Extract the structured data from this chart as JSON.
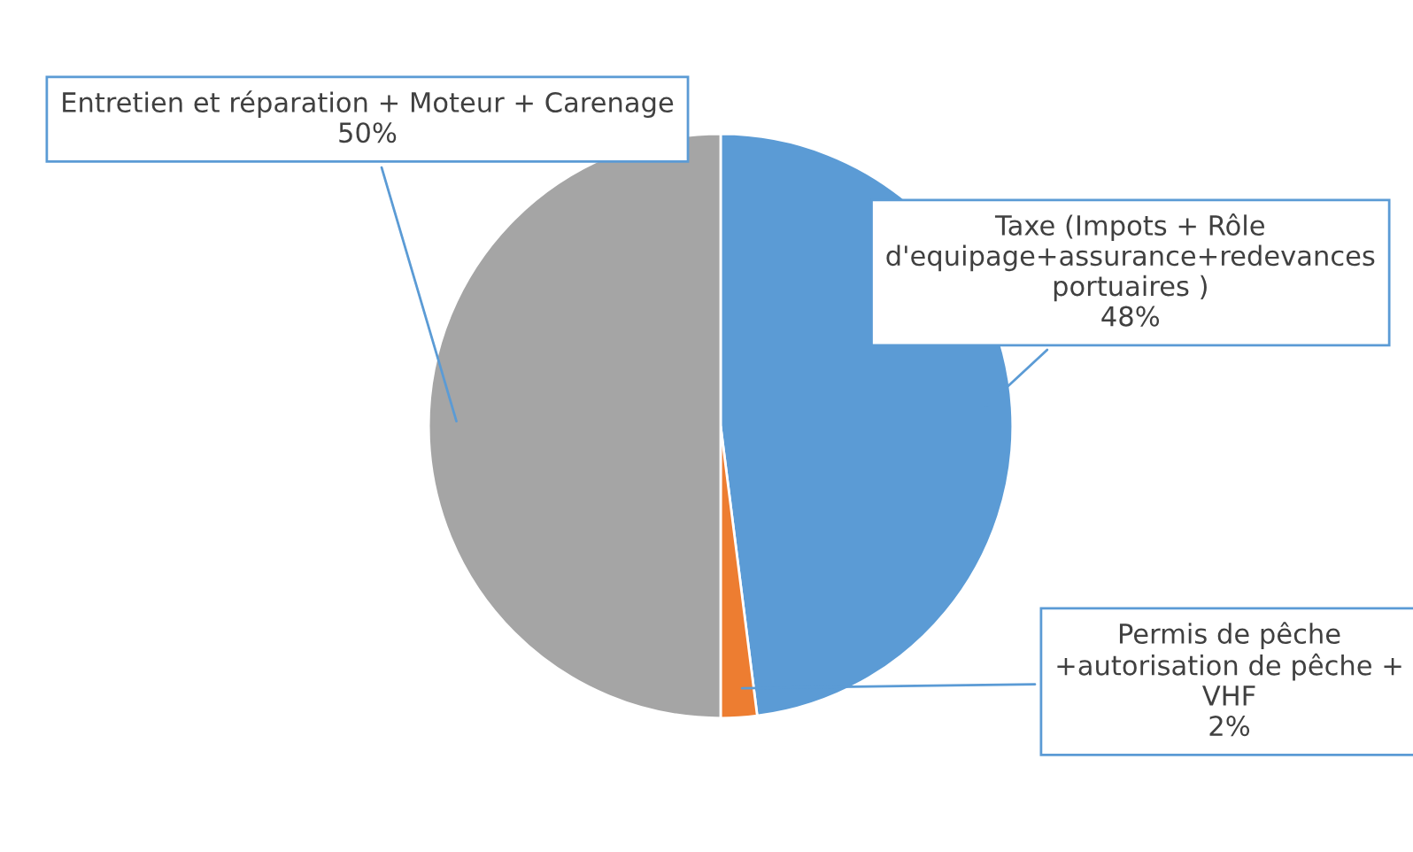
{
  "chart_data": {
    "type": "pie",
    "categories": [
      "Taxe (Impots + Rôle d'equipage+assurance+redevances portuaires )",
      "Permis de pêche +autorisation de pêche + VHF",
      "Entretien et réparation + Moteur + Carenage"
    ],
    "values": [
      48,
      2,
      50
    ],
    "colors": [
      "#5b9bd5",
      "#ed7d31",
      "#a5a5a5"
    ],
    "value_labels": [
      "48%",
      "2%",
      "50%"
    ],
    "legend": false
  }
}
